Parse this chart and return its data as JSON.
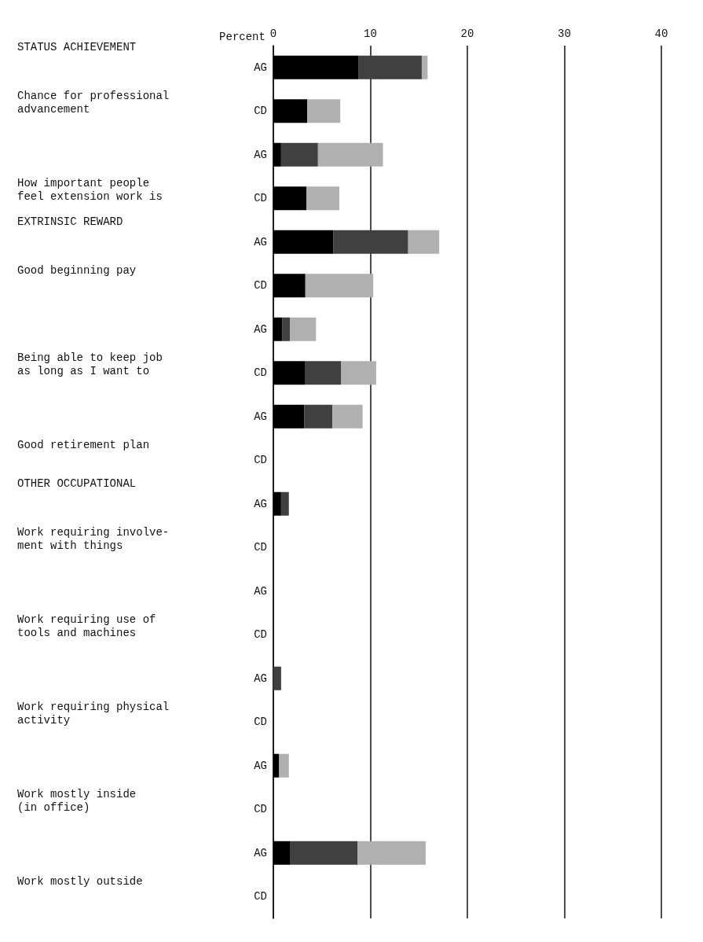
{
  "chart_data": {
    "type": "bar",
    "orientation": "horizontal",
    "stacked": true,
    "xlabel": "Percent",
    "categories": [
      "AG",
      "CD",
      "AG",
      "CD",
      "AG",
      "CD",
      "AG",
      "CD",
      "AG",
      "CD",
      "AG",
      "CD",
      "AG",
      "CD",
      "AG",
      "CD",
      "AG",
      "CD",
      "AG",
      "CD"
    ],
    "series": [
      {
        "color": "#000000",
        "values": [
          8.8,
          3.5,
          0.8,
          3.4,
          6.2,
          3.3,
          0.9,
          3.3,
          3.2,
          0,
          0.8,
          0,
          0,
          0,
          0,
          0,
          0.6,
          0,
          1.7,
          0
        ]
      },
      {
        "color": "#404040",
        "values": [
          6.5,
          0,
          3.8,
          0,
          7.7,
          0,
          0.8,
          3.7,
          2.9,
          0,
          0.8,
          0,
          0,
          0,
          0.8,
          0,
          0,
          0,
          7.0,
          0
        ]
      },
      {
        "color": "#b0b0b0",
        "values": [
          0.6,
          3.4,
          6.7,
          3.4,
          3.2,
          7.0,
          2.7,
          3.6,
          3.1,
          0,
          0,
          0,
          0,
          0,
          0,
          0,
          1.0,
          0,
          7.0,
          0
        ]
      }
    ],
    "xlim": [
      0,
      40
    ],
    "xticks": [
      0,
      10,
      20,
      30,
      40
    ],
    "grid": "x",
    "annotations": [
      "STATUS ACHIEVEMENT",
      "Chance for professional\nadvancement",
      "How important people\nfeel extension work is",
      "EXTRINSIC REWARD",
      "Good beginning pay",
      "Being able to keep job\nas long as I want to",
      "Good retirement plan",
      "OTHER OCCUPATIONAL",
      "Work requiring involve-\nment with things",
      "Work requiring use of\ntools and machines",
      "Work requiring physical\nactivity",
      "Work mostly inside\n(in office)",
      "Work mostly outside"
    ]
  }
}
